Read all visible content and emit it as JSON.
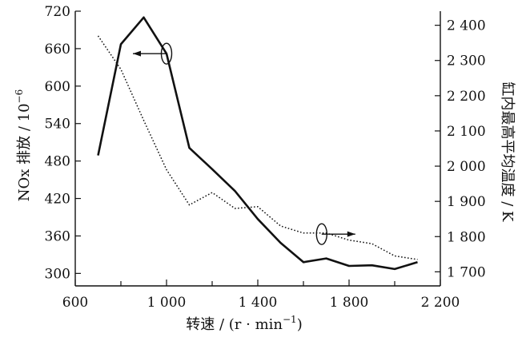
{
  "chart_data": {
    "type": "line",
    "xlabel": "转速 / (r · min",
    "xlabel_sup": "−1",
    "xlabel_tail": ")",
    "ylabel_left": "NOx 排放 / 10",
    "ylabel_left_sup": "−6",
    "ylabel_right": "缸内最高平均温度 / K",
    "xlim": [
      600,
      2200
    ],
    "ylim_left": [
      280,
      720
    ],
    "ylim_right": [
      1660,
      2440
    ],
    "x_ticks": [
      600,
      1000,
      1400,
      1800,
      2200
    ],
    "x_tick_labels": [
      "600",
      "1 000",
      "1 400",
      "1 800",
      "2 200"
    ],
    "x_minor_ticks": [
      800,
      1200,
      1600,
      2000
    ],
    "y_left_ticks": [
      300,
      360,
      420,
      480,
      540,
      600,
      660,
      720
    ],
    "y_left_tick_labels": [
      "300",
      "360",
      "420",
      "480",
      "540",
      "600",
      "660",
      "720"
    ],
    "y_right_ticks": [
      1700,
      1800,
      1900,
      2000,
      2100,
      2200,
      2300,
      2400
    ],
    "y_right_tick_labels": [
      "1 700",
      "1 800",
      "1 900",
      "2 000",
      "2 100",
      "2 200",
      "2 300",
      "2 400"
    ],
    "series": [
      {
        "axis": "left",
        "style": "solid",
        "x": [
          700,
          800,
          900,
          1000,
          1100,
          1200,
          1300,
          1400,
          1500,
          1600,
          1700,
          1800,
          1900,
          2000,
          2100
        ],
        "values": [
          489,
          667,
          710,
          652,
          501,
          467,
          432,
          387,
          349,
          318,
          324,
          312,
          313,
          307,
          318
        ]
      },
      {
        "axis": "right",
        "style": "dotted",
        "x": [
          700,
          800,
          900,
          1000,
          1100,
          1200,
          1300,
          1400,
          1500,
          1600,
          1700,
          1800,
          1900,
          2000,
          2100
        ],
        "values": [
          2370,
          2275,
          2130,
          1990,
          1890,
          1925,
          1880,
          1885,
          1830,
          1810,
          1810,
          1790,
          1780,
          1745,
          1735
        ]
      }
    ],
    "annotations": [
      {
        "type": "ellipse-arrow",
        "series": 0,
        "at_x": 1000,
        "at_y": 652,
        "direction": "left"
      },
      {
        "type": "ellipse-arrow",
        "series": 1,
        "at_x": 1680,
        "at_y": 1807,
        "direction": "right"
      }
    ]
  }
}
